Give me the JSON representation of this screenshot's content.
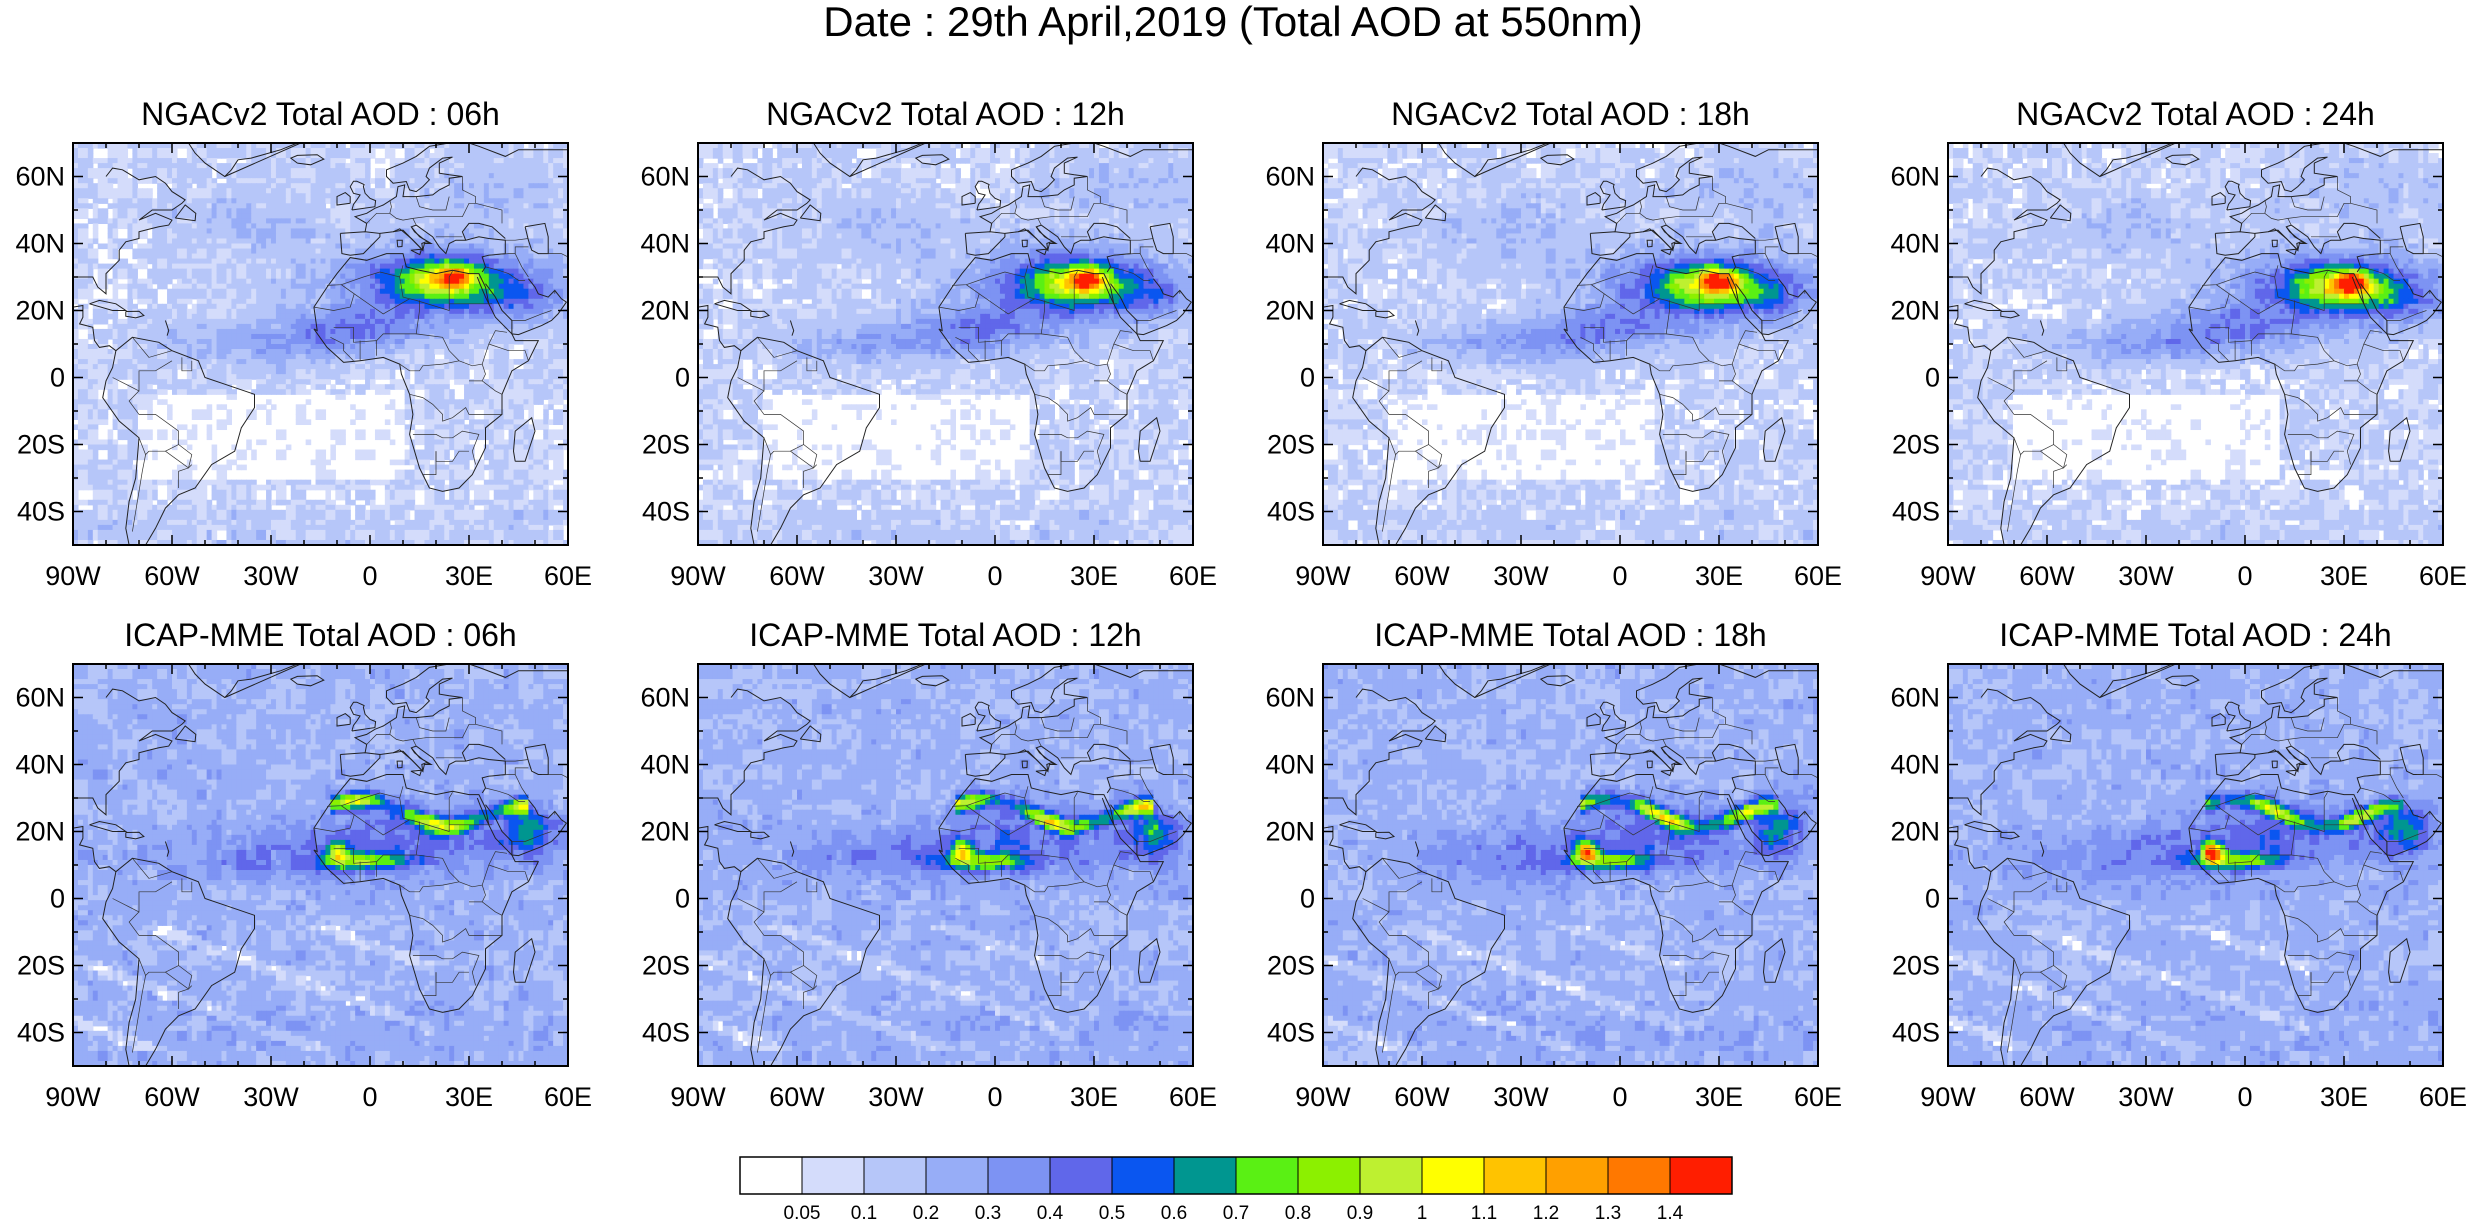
{
  "title": "Date : 29th April,2019 (Total AOD at 550nm)",
  "panels": [
    {
      "title": "NGACv2 Total AOD : 06h",
      "model": "ngac",
      "hour": "06h"
    },
    {
      "title": "NGACv2 Total AOD : 12h",
      "model": "ngac",
      "hour": "12h"
    },
    {
      "title": "NGACv2 Total AOD : 18h",
      "model": "ngac",
      "hour": "18h"
    },
    {
      "title": "NGACv2 Total AOD : 24h",
      "model": "ngac",
      "hour": "24h"
    },
    {
      "title": "ICAP-MME Total AOD : 06h",
      "model": "icap",
      "hour": "06h"
    },
    {
      "title": "ICAP-MME Total AOD : 12h",
      "model": "icap",
      "hour": "12h"
    },
    {
      "title": "ICAP-MME Total AOD : 18h",
      "model": "icap",
      "hour": "18h"
    },
    {
      "title": "ICAP-MME Total AOD : 24h",
      "model": "icap",
      "hour": "24h"
    }
  ],
  "map_extent": {
    "lon": [
      -90,
      60
    ],
    "lat": [
      -50,
      70
    ]
  },
  "lat_ticks": [
    {
      "value": 60,
      "label": "60N"
    },
    {
      "value": 40,
      "label": "40N"
    },
    {
      "value": 20,
      "label": "20N"
    },
    {
      "value": 0,
      "label": "0"
    },
    {
      "value": -20,
      "label": "20S"
    },
    {
      "value": -40,
      "label": "40S"
    }
  ],
  "lon_ticks": [
    {
      "value": -90,
      "label": "90W"
    },
    {
      "value": -60,
      "label": "60W"
    },
    {
      "value": -30,
      "label": "30W"
    },
    {
      "value": 0,
      "label": "0"
    },
    {
      "value": 30,
      "label": "30E"
    },
    {
      "value": 60,
      "label": "60E"
    }
  ],
  "colorbar": {
    "colors": [
      "#ffffff",
      "#d4dcfb",
      "#b6c6f9",
      "#97adf7",
      "#7d93f3",
      "#6067ea",
      "#0a56f0",
      "#009690",
      "#5af014",
      "#8cf000",
      "#bef030",
      "#ffff00",
      "#ffc300",
      "#ffa000",
      "#ff7800",
      "#ff1e00"
    ],
    "labels": [
      "0.05",
      "0.1",
      "0.2",
      "0.3",
      "0.4",
      "0.5",
      "0.6",
      "0.7",
      "0.8",
      "0.9",
      "1",
      "1.1",
      "1.2",
      "1.3",
      "1.4"
    ]
  }
}
